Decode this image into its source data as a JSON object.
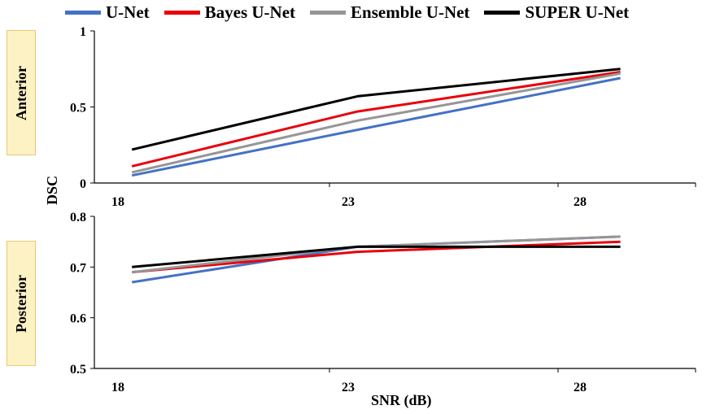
{
  "legend": [
    {
      "label": "U-Net",
      "color": "#4472c4"
    },
    {
      "label": "Bayes U-Net",
      "color": "#e8000b"
    },
    {
      "label": "Ensemble U-Net",
      "color": "#969696"
    },
    {
      "label": "SUPER U-Net",
      "color": "#000000"
    }
  ],
  "labels": {
    "ylabel": "DSC",
    "xlabel": "SNR (dB)",
    "panel_top": "Anterior",
    "panel_bottom": "Posterior"
  },
  "chart_data": [
    {
      "type": "line",
      "panel": "Anterior",
      "x": [
        18,
        24,
        31
      ],
      "xlim": [
        17,
        33
      ],
      "xticks": [
        "18",
        "23",
        "28"
      ],
      "ylim": [
        0,
        1
      ],
      "yticks": [
        "0",
        "0.5",
        "1"
      ],
      "series": [
        {
          "name": "U-Net",
          "color": "#4472c4",
          "values": [
            0.05,
            0.35,
            0.69
          ]
        },
        {
          "name": "Bayes U-Net",
          "color": "#e8000b",
          "values": [
            0.11,
            0.47,
            0.73
          ]
        },
        {
          "name": "Ensemble U-Net",
          "color": "#969696",
          "values": [
            0.07,
            0.41,
            0.72
          ]
        },
        {
          "name": "SUPER U-Net",
          "color": "#000000",
          "values": [
            0.22,
            0.57,
            0.75
          ]
        }
      ]
    },
    {
      "type": "line",
      "panel": "Posterior",
      "x": [
        18,
        24,
        31
      ],
      "xlim": [
        17,
        33
      ],
      "xticks": [
        "18",
        "23",
        "28"
      ],
      "ylim": [
        0.5,
        0.8
      ],
      "yticks": [
        "0.5",
        "0.6",
        "0.7",
        "0.8"
      ],
      "series": [
        {
          "name": "U-Net",
          "color": "#4472c4",
          "values": [
            0.67,
            0.74,
            0.76
          ]
        },
        {
          "name": "Bayes U-Net",
          "color": "#e8000b",
          "values": [
            0.69,
            0.73,
            0.75
          ]
        },
        {
          "name": "Ensemble U-Net",
          "color": "#969696",
          "values": [
            0.69,
            0.74,
            0.76
          ]
        },
        {
          "name": "SUPER U-Net",
          "color": "#000000",
          "values": [
            0.7,
            0.74,
            0.74
          ]
        }
      ]
    }
  ]
}
